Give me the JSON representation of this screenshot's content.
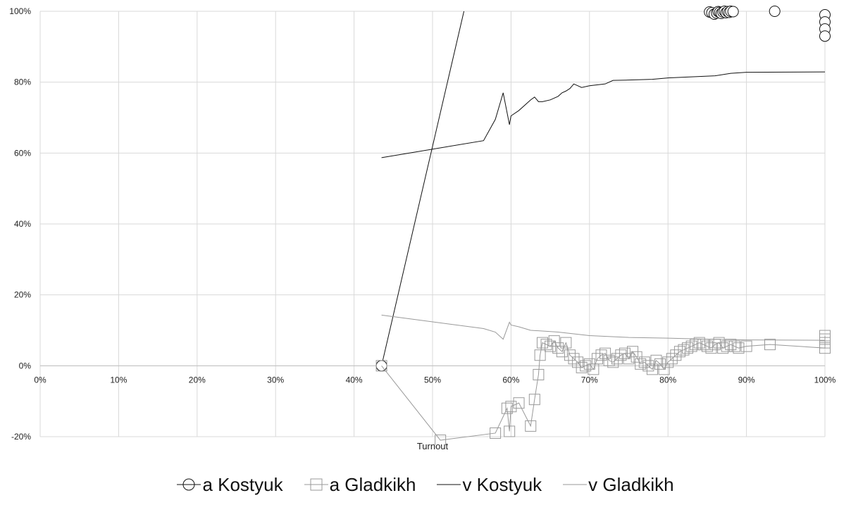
{
  "chart_data": {
    "type": "scatter",
    "xlabel": "Turnout",
    "ylabel": "",
    "xlim": [
      0,
      1
    ],
    "ylim": [
      -0.2,
      1.0
    ],
    "x_ticks": [
      "0%",
      "10%",
      "20%",
      "30%",
      "40%",
      "50%",
      "60%",
      "70%",
      "80%",
      "90%",
      "100%"
    ],
    "y_ticks": [
      "-20%",
      "0%",
      "20%",
      "40%",
      "60%",
      "80%",
      "100%"
    ],
    "grid": true,
    "legend_position": "bottom",
    "series": [
      {
        "name": "a Kostyuk",
        "type": "line-markers",
        "marker": "circle",
        "color": "#111111",
        "x": [
          0.435,
          0.54
        ],
        "y": [
          0.0,
          1.0
        ],
        "extra_points": {
          "x": [
            0.853,
            0.856,
            0.859,
            0.862,
            0.864,
            0.866,
            0.868,
            0.87,
            0.872,
            0.874,
            0.876,
            0.878,
            0.88,
            0.883,
            0.936,
            1.0,
            1.0,
            1.0,
            1.0
          ],
          "y": [
            0.998,
            0.996,
            0.992,
            0.995,
            0.999,
            0.997,
            0.994,
            0.998,
            1.0,
            0.996,
            0.999,
            0.997,
            1.0,
            0.999,
            1.0,
            0.99,
            0.97,
            0.95,
            0.93
          ]
        }
      },
      {
        "name": "a Gladkikh",
        "type": "line-markers",
        "marker": "square",
        "color": "#999999",
        "x": [
          0.435,
          0.51,
          0.58,
          0.595,
          0.598,
          0.6,
          0.61,
          0.625,
          0.63,
          0.635,
          0.637,
          0.64,
          0.645,
          0.65,
          0.655,
          0.66,
          0.665,
          0.67,
          0.675,
          0.68,
          0.685,
          0.69,
          0.695,
          0.7,
          0.705,
          0.71,
          0.715,
          0.72,
          0.725,
          0.73,
          0.735,
          0.74,
          0.745,
          0.75,
          0.755,
          0.76,
          0.765,
          0.77,
          0.775,
          0.78,
          0.785,
          0.79,
          0.795,
          0.8,
          0.805,
          0.81,
          0.815,
          0.82,
          0.825,
          0.83,
          0.835,
          0.84,
          0.845,
          0.85,
          0.855,
          0.86,
          0.865,
          0.87,
          0.875,
          0.88,
          0.885,
          0.89,
          0.9,
          0.93,
          1.0,
          1.0,
          1.0,
          1.0
        ],
        "y": [
          0.0,
          -0.21,
          -0.19,
          -0.12,
          -0.185,
          -0.115,
          -0.105,
          -0.17,
          -0.095,
          -0.025,
          0.03,
          0.065,
          0.06,
          0.055,
          0.07,
          0.05,
          0.04,
          0.065,
          0.03,
          0.02,
          0.01,
          -0.005,
          0.0,
          0.005,
          -0.01,
          0.02,
          0.03,
          0.035,
          0.015,
          0.01,
          0.02,
          0.03,
          0.035,
          0.02,
          0.04,
          0.025,
          0.005,
          0.01,
          0.0,
          -0.01,
          0.015,
          0.005,
          -0.01,
          0.01,
          0.02,
          0.03,
          0.04,
          0.045,
          0.05,
          0.055,
          0.06,
          0.065,
          0.06,
          0.055,
          0.05,
          0.06,
          0.065,
          0.05,
          0.055,
          0.06,
          0.055,
          0.05,
          0.055,
          0.06,
          0.05,
          0.065,
          0.075,
          0.085
        ]
      },
      {
        "name": "v Kostyuk",
        "type": "line",
        "color": "#111111",
        "x": [
          0.435,
          0.565,
          0.58,
          0.59,
          0.598,
          0.6,
          0.61,
          0.625,
          0.63,
          0.635,
          0.64,
          0.65,
          0.66,
          0.665,
          0.67,
          0.675,
          0.68,
          0.69,
          0.7,
          0.72,
          0.73,
          0.75,
          0.78,
          0.8,
          0.83,
          0.86,
          0.88,
          0.9,
          1.0
        ],
        "y": [
          0.587,
          0.635,
          0.695,
          0.77,
          0.68,
          0.705,
          0.72,
          0.75,
          0.758,
          0.745,
          0.745,
          0.75,
          0.76,
          0.77,
          0.775,
          0.782,
          0.795,
          0.785,
          0.79,
          0.795,
          0.805,
          0.806,
          0.808,
          0.812,
          0.815,
          0.818,
          0.825,
          0.828,
          0.829
        ]
      },
      {
        "name": "v Gladkikh",
        "type": "line",
        "color": "#999999",
        "x": [
          0.435,
          0.565,
          0.58,
          0.59,
          0.598,
          0.6,
          0.61,
          0.625,
          0.64,
          0.66,
          0.68,
          0.7,
          0.75,
          0.8,
          0.85,
          0.9,
          1.0
        ],
        "y": [
          0.143,
          0.105,
          0.095,
          0.075,
          0.123,
          0.115,
          0.11,
          0.1,
          0.098,
          0.095,
          0.09,
          0.085,
          0.08,
          0.078,
          0.075,
          0.073,
          0.072
        ]
      }
    ]
  }
}
